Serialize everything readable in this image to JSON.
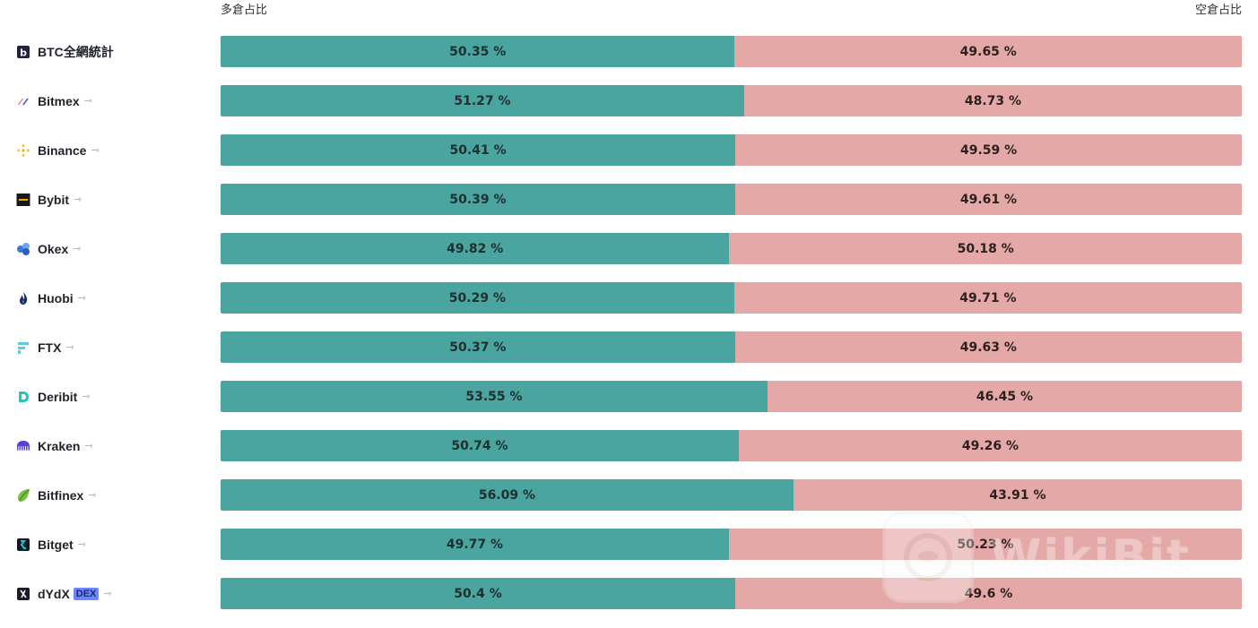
{
  "header": {
    "long_label": "多倉占比",
    "short_label": "空倉占比"
  },
  "colors": {
    "long": "#4aa4a0",
    "short": "#e4a8a6"
  },
  "rows": [
    {
      "name": "BTC全網統計",
      "icon": "b-square-icon",
      "share": false,
      "dex": false,
      "long_label": "50.35 %",
      "short_label": "49.65 %",
      "long": 50.35
    },
    {
      "name": "Bitmex",
      "icon": "bitmex-icon",
      "share": true,
      "dex": false,
      "long_label": "51.27 %",
      "short_label": "48.73 %",
      "long": 51.27
    },
    {
      "name": "Binance",
      "icon": "binance-icon",
      "share": true,
      "dex": false,
      "long_label": "50.41 %",
      "short_label": "49.59 %",
      "long": 50.41
    },
    {
      "name": "Bybit",
      "icon": "bybit-icon",
      "share": true,
      "dex": false,
      "long_label": "50.39 %",
      "short_label": "49.61 %",
      "long": 50.39
    },
    {
      "name": "Okex",
      "icon": "okex-icon",
      "share": true,
      "dex": false,
      "long_label": "49.82 %",
      "short_label": "50.18 %",
      "long": 49.82
    },
    {
      "name": "Huobi",
      "icon": "huobi-icon",
      "share": true,
      "dex": false,
      "long_label": "50.29 %",
      "short_label": "49.71 %",
      "long": 50.29
    },
    {
      "name": "FTX",
      "icon": "ftx-icon",
      "share": true,
      "dex": false,
      "long_label": "50.37 %",
      "short_label": "49.63 %",
      "long": 50.37
    },
    {
      "name": "Deribit",
      "icon": "deribit-icon",
      "share": true,
      "dex": false,
      "long_label": "53.55 %",
      "short_label": "46.45 %",
      "long": 53.55
    },
    {
      "name": "Kraken",
      "icon": "kraken-icon",
      "share": true,
      "dex": false,
      "long_label": "50.74 %",
      "short_label": "49.26 %",
      "long": 50.74
    },
    {
      "name": "Bitfinex",
      "icon": "bitfinex-icon",
      "share": true,
      "dex": false,
      "long_label": "56.09 %",
      "short_label": "43.91 %",
      "long": 56.09
    },
    {
      "name": "Bitget",
      "icon": "bitget-icon",
      "share": true,
      "dex": false,
      "long_label": "49.77 %",
      "short_label": "50.23 %",
      "long": 49.77
    },
    {
      "name": "dYdX",
      "icon": "dydx-icon",
      "share": true,
      "dex": true,
      "dex_label": "DEX",
      "long_label": "50.4 %",
      "short_label": "49.6 %",
      "long": 50.4
    }
  ],
  "watermark": {
    "text": "WikiBit"
  }
}
